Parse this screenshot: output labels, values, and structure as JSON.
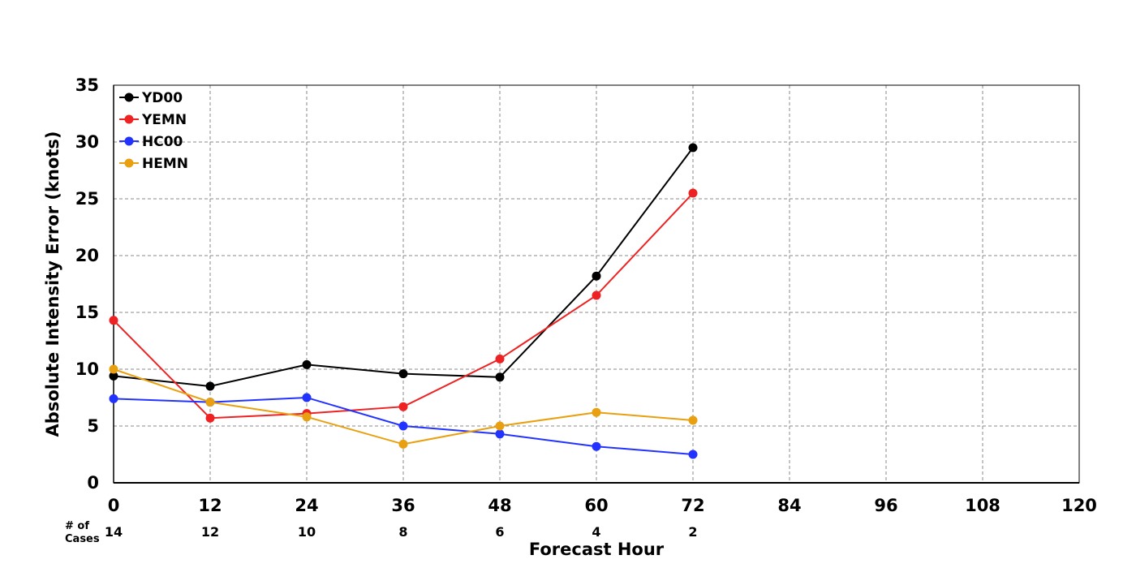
{
  "chart_data": {
    "type": "line",
    "title": "",
    "xlabel": "Forecast Hour",
    "ylabel": "Absolute Intensity Error (knots)",
    "xlim": [
      0,
      120
    ],
    "ylim": [
      0,
      35
    ],
    "x_ticks": [
      0,
      12,
      24,
      36,
      48,
      60,
      72,
      84,
      96,
      108,
      120
    ],
    "y_ticks": [
      0,
      5,
      10,
      15,
      20,
      25,
      30,
      35
    ],
    "grid": true,
    "legend_position": "top-left",
    "cases_label_line1": "# of",
    "cases_label_line2": "Cases",
    "cases": [
      {
        "x": 0,
        "n": 14
      },
      {
        "x": 12,
        "n": 12
      },
      {
        "x": 24,
        "n": 10
      },
      {
        "x": 36,
        "n": 8
      },
      {
        "x": 48,
        "n": 6
      },
      {
        "x": 60,
        "n": 4
      },
      {
        "x": 72,
        "n": 2
      }
    ],
    "x": [
      0,
      12,
      24,
      36,
      48,
      60,
      72
    ],
    "series": [
      {
        "name": "YD00",
        "color": "#000000",
        "values": [
          9.4,
          8.5,
          10.4,
          9.6,
          9.3,
          18.2,
          29.5
        ]
      },
      {
        "name": "YEMN",
        "color": "#ee2222",
        "values": [
          14.3,
          5.7,
          6.1,
          6.7,
          10.9,
          16.5,
          25.5
        ]
      },
      {
        "name": "HC00",
        "color": "#2233ff",
        "values": [
          7.4,
          7.1,
          7.5,
          5.0,
          4.3,
          3.2,
          2.5
        ]
      },
      {
        "name": "HEMN",
        "color": "#e8a010",
        "values": [
          10.0,
          7.1,
          5.8,
          3.4,
          5.0,
          6.2,
          5.5
        ]
      }
    ]
  }
}
